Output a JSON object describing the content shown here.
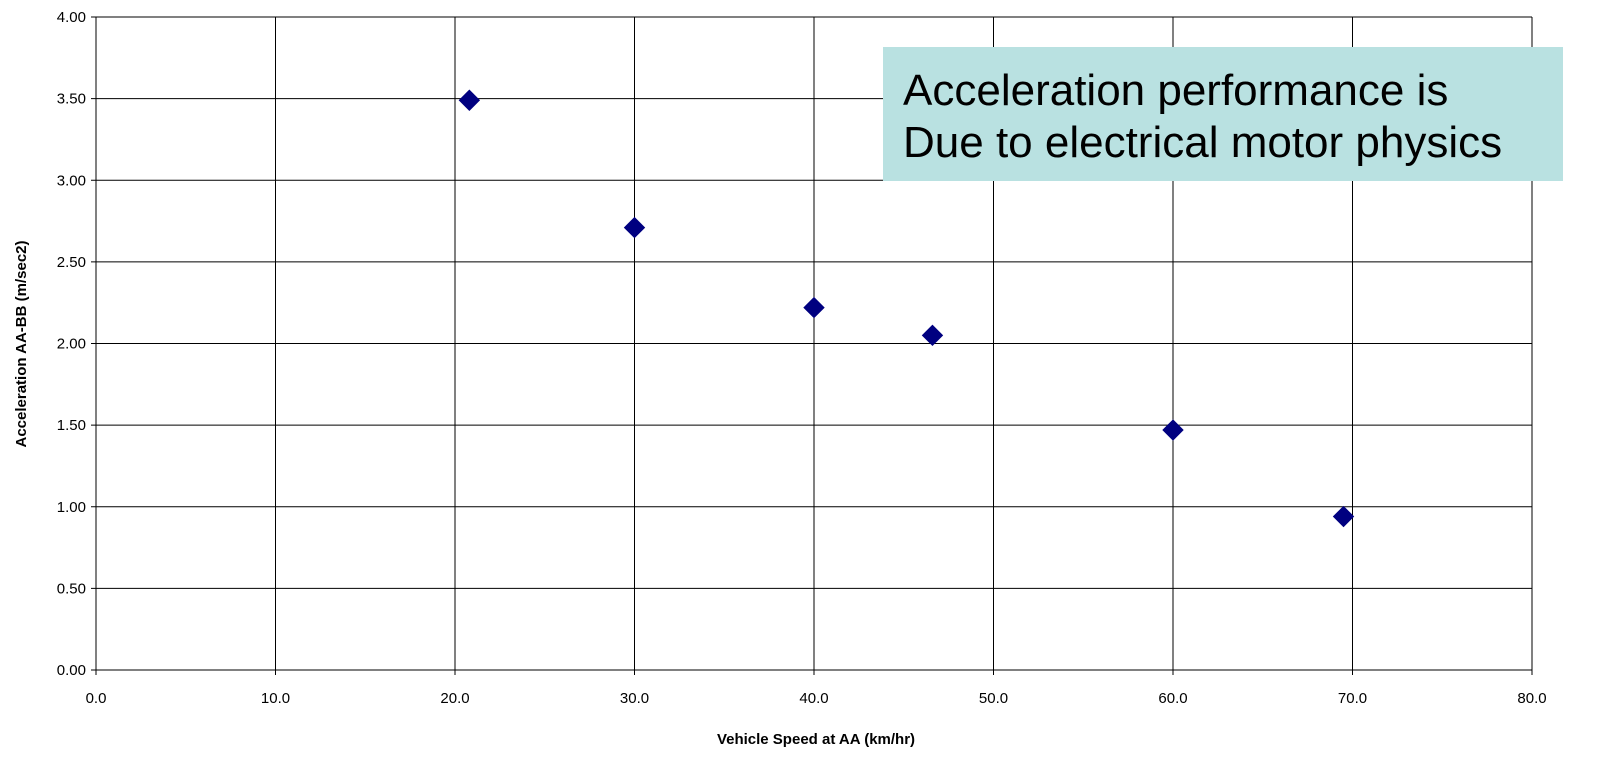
{
  "chart_data": {
    "type": "scatter",
    "title": "",
    "xlabel": "Vehicle Speed at AA (km/hr)",
    "ylabel": "Acceleration AA-BB (m/sec2)",
    "xlim": [
      0,
      80
    ],
    "ylim": [
      0,
      4
    ],
    "x_ticks": [
      "0.0",
      "10.0",
      "20.0",
      "30.0",
      "40.0",
      "50.0",
      "60.0",
      "70.0",
      "80.0"
    ],
    "y_ticks": [
      "0.00",
      "0.50",
      "1.00",
      "1.50",
      "2.00",
      "2.50",
      "3.00",
      "3.50",
      "4.00"
    ],
    "grid": true,
    "legend": "none",
    "marker": "diamond",
    "marker_color": "#000080",
    "series": [
      {
        "x": [
          20.8,
          30.0,
          40.0,
          46.6,
          60.0,
          69.5
        ],
        "y": [
          3.49,
          2.71,
          2.22,
          2.05,
          1.47,
          0.94
        ]
      }
    ],
    "annotation": {
      "lines": [
        "Acceleration performance is",
        "Due to electrical motor physics"
      ],
      "background": "#b9e1e1"
    }
  }
}
